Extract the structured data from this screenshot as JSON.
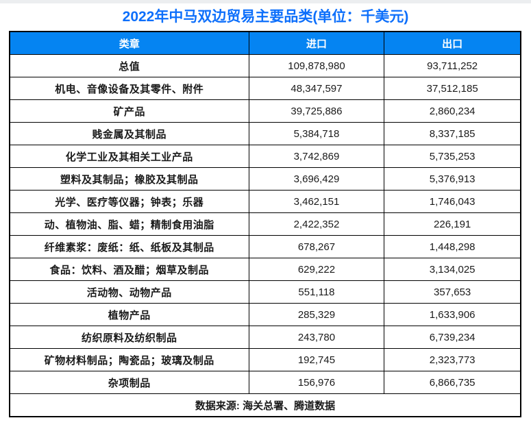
{
  "page": {
    "title": "2022年中马双边贸易主要品类(单位：千美元)",
    "source_note": "数据来源: 海关总署、腾道数据"
  },
  "colors": {
    "title_blue": "#0d6ffb",
    "header_blue": "#0584f2",
    "source_blue": "#0c86e8",
    "border": "#000000",
    "top_strip_gray": "#eceef0"
  },
  "chart_data": {
    "type": "table",
    "title": "2022年中马双边贸易主要品类(单位：千美元)",
    "unit": "千美元",
    "columns": [
      "类章",
      "进口",
      "出口"
    ],
    "rows": [
      [
        "总值",
        "109,878,980",
        "93,711,252"
      ],
      [
        "机电、音像设备及其零件、附件",
        "48,347,597",
        "37,512,185"
      ],
      [
        "矿产品",
        "39,725,886",
        "2,860,234"
      ],
      [
        "贱金属及其制品",
        "5,384,718",
        "8,337,185"
      ],
      [
        "化学工业及其相关工业产品",
        "3,742,869",
        "5,735,253"
      ],
      [
        "塑料及其制品；橡胶及其制品",
        "3,696,429",
        "5,376,913"
      ],
      [
        "光学、医疗等仪器；钟表；乐器",
        "3,462,151",
        "1,746,043"
      ],
      [
        "动、植物油、脂、蜡；精制食用油脂",
        "2,422,352",
        "226,191"
      ],
      [
        "纤维素浆：废纸：纸、纸板及其制品",
        "678,267",
        "1,448,298"
      ],
      [
        "食品：饮料、酒及醋；烟草及制品",
        "629,222",
        "3,134,025"
      ],
      [
        "活动物、动物产品",
        "551,118",
        "357,653"
      ],
      [
        "植物产品",
        "285,329",
        "1,633,906"
      ],
      [
        "纺织原料及纺织制品",
        "243,780",
        "6,739,234"
      ],
      [
        "矿物材料制品；陶瓷品；玻璃及制品",
        "192,745",
        "2,323,773"
      ],
      [
        "杂项制品",
        "156,976",
        "6,866,735"
      ]
    ],
    "source": "数据来源: 海关总署、腾道数据"
  }
}
